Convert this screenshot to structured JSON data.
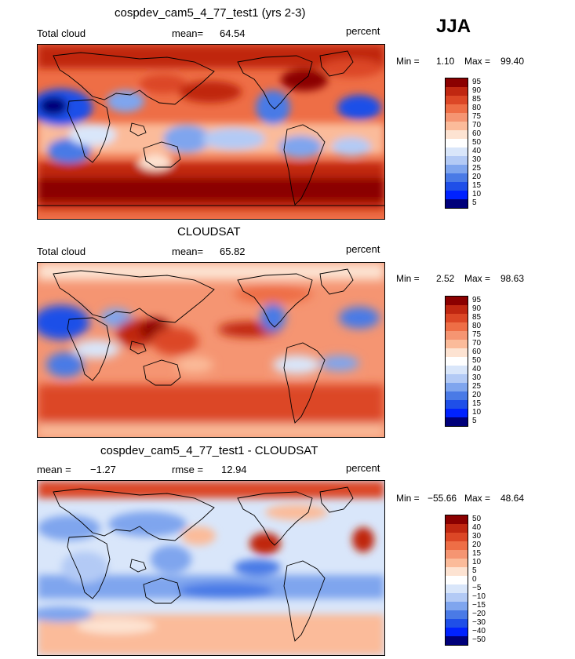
{
  "season": "JJA",
  "colors": {
    "scale": [
      "#00007a",
      "#0022ff",
      "#1f4fe8",
      "#4a7ae6",
      "#7fa5ee",
      "#b3caf5",
      "#d9e6fa",
      "#fde3d2",
      "#fbbb9a",
      "#f59572",
      "#ee6e46",
      "#dc4726",
      "#c02711",
      "#8b0000"
    ],
    "land_outline": "#000000"
  },
  "panels": [
    {
      "title": "cospdev_cam5_4_77_test1 (yrs 2-3)",
      "left_label": "Total cloud",
      "mean_label": "mean=",
      "mean_value": "64.54",
      "units": "percent",
      "min_label": "Min =",
      "min_value": "1.10",
      "max_label": "Max =",
      "max_value": "99.40",
      "levels": [
        "95",
        "90",
        "85",
        "80",
        "75",
        "70",
        "60",
        "50",
        "40",
        "30",
        "25",
        "20",
        "15",
        "10",
        "5"
      ]
    },
    {
      "title": "CLOUDSAT",
      "left_label": "Total cloud",
      "mean_label": "mean=",
      "mean_value": "65.82",
      "units": "percent",
      "min_label": "Min =",
      "min_value": "2.52",
      "max_label": "Max =",
      "max_value": "98.63",
      "levels": [
        "95",
        "90",
        "85",
        "80",
        "75",
        "70",
        "60",
        "50",
        "40",
        "30",
        "25",
        "20",
        "15",
        "10",
        "5"
      ]
    },
    {
      "title": "cospdev_cam5_4_77_test1 - CLOUDSAT",
      "left_label": "mean =",
      "left_value": "−1.27",
      "mean_label": "rmse =",
      "mean_value": "12.94",
      "units": "percent",
      "min_label": "Min =",
      "min_value": "−55.66",
      "max_label": "Max =",
      "max_value": "48.64",
      "levels": [
        "50",
        "40",
        "30",
        "20",
        "15",
        "10",
        "5",
        "0",
        "−5",
        "−10",
        "−15",
        "−20",
        "−30",
        "−40",
        "−50"
      ]
    }
  ]
}
